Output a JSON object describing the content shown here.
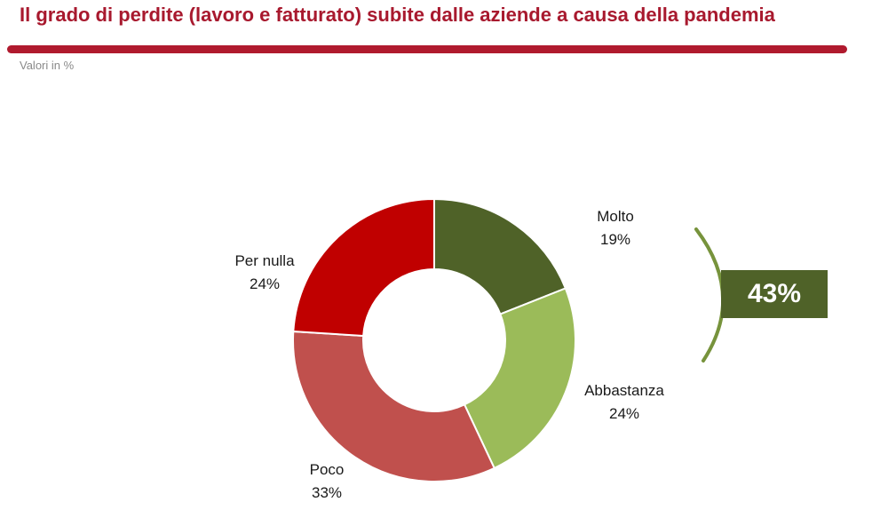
{
  "title": "Il grado di perdite (lavoro e fatturato) subite dalle aziende a causa della pandemia",
  "subtitle": "Valori in %",
  "total_callout": {
    "label": "43%",
    "value": 43,
    "color": "#4f6228"
  },
  "chart_data": {
    "type": "pie",
    "style": "donut",
    "title": "Il grado di perdite (lavoro e fatturato) subite dalle aziende a causa della pandemia",
    "slices": [
      {
        "name": "Molto",
        "value": 19,
        "label": "19%",
        "color": "#4f6228"
      },
      {
        "name": "Abbastanza",
        "value": 24,
        "label": "24%",
        "color": "#9bbb59"
      },
      {
        "name": "Poco",
        "value": 33,
        "label": "33%",
        "color": "#c0504d"
      },
      {
        "name": "Per nulla",
        "value": 24,
        "label": "24%",
        "color": "#c00000"
      }
    ]
  }
}
